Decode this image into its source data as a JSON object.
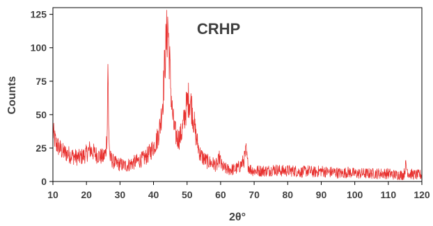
{
  "chart_data": {
    "type": "line",
    "title": "CRHP",
    "xlabel": "2θ°",
    "ylabel": "Counts",
    "xlim": [
      10,
      120
    ],
    "ylim": [
      0,
      130
    ],
    "xticks": [
      10,
      20,
      30,
      40,
      50,
      60,
      70,
      80,
      90,
      100,
      110,
      120
    ],
    "yticks": [
      0,
      25,
      50,
      75,
      100,
      125
    ],
    "grid": false,
    "color": "#e8312f",
    "series": [
      {
        "x": [
          10,
          10.5,
          11,
          12,
          13,
          14,
          15,
          16,
          17,
          18,
          19,
          20,
          21,
          22,
          23,
          24,
          25,
          25.8,
          26.2,
          26.4,
          26.6,
          27,
          28,
          29,
          30,
          31,
          32,
          33,
          34,
          35,
          36,
          37,
          38,
          39,
          40,
          41,
          42,
          42.8,
          43.5,
          44,
          44.3,
          44.6,
          45,
          45.5,
          46,
          46.5,
          47,
          47.5,
          48,
          48.5,
          49,
          49.5,
          50,
          50.5,
          51,
          51.5,
          52,
          52.5,
          53,
          53.5,
          54,
          55,
          56,
          57,
          58,
          59,
          59.7,
          60.2,
          61,
          62,
          63,
          64,
          65,
          66,
          67,
          67.6,
          68,
          68.6,
          69,
          70,
          72,
          74,
          76,
          78,
          80,
          82,
          84,
          86,
          88,
          90,
          92,
          94,
          96,
          98,
          100,
          102,
          104,
          106,
          108,
          110,
          112,
          114,
          114.6,
          115.2,
          116,
          118,
          120
        ],
        "y": [
          37,
          32,
          28,
          25,
          22,
          21,
          20,
          19,
          18,
          18,
          19,
          21,
          24,
          22,
          20,
          19,
          18,
          22,
          40,
          93,
          40,
          18,
          15,
          13,
          13,
          12,
          12,
          13,
          14,
          15,
          16,
          17,
          19,
          22,
          26,
          31,
          42,
          62,
          95,
          110,
          118,
          100,
          78,
          55,
          42,
          36,
          33,
          32,
          34,
          38,
          44,
          52,
          58,
          62,
          60,
          54,
          45,
          36,
          30,
          24,
          20,
          17,
          15,
          14,
          13,
          12,
          18,
          12,
          10,
          9,
          9,
          9,
          10,
          12,
          16,
          23,
          14,
          10,
          9,
          8,
          8,
          8,
          9,
          8,
          8,
          8,
          7,
          8,
          7,
          8,
          7,
          7,
          6,
          7,
          6,
          6,
          6,
          6,
          6,
          6,
          5,
          5,
          5,
          12,
          6,
          5,
          5
        ]
      }
    ]
  }
}
